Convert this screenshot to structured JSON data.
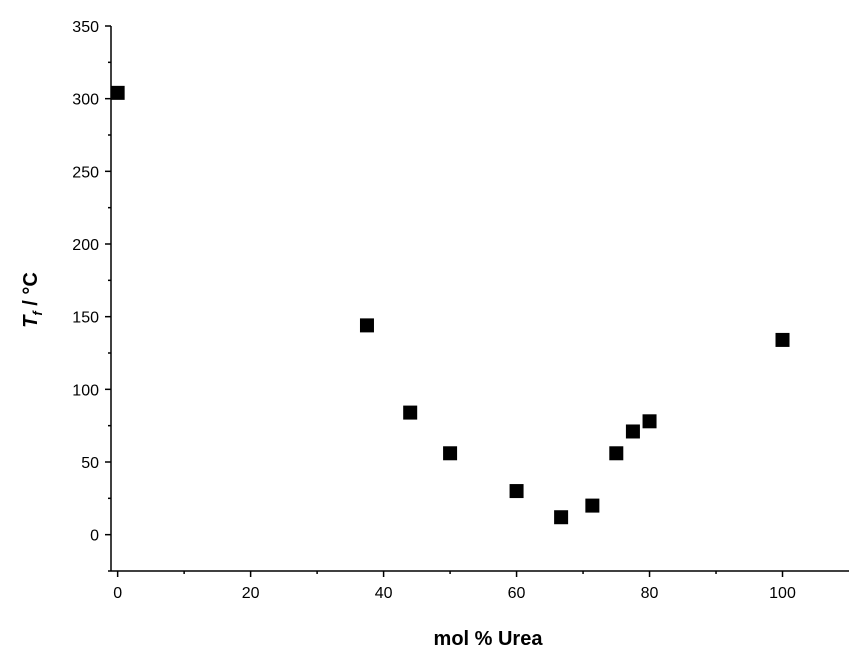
{
  "chart_data": {
    "type": "scatter",
    "title": "",
    "xlabel": "mol % Urea",
    "ylabel": {
      "symbol": "T",
      "subscript": "f",
      "unit": " / °C"
    },
    "xlim": [
      -1,
      110
    ],
    "ylim": [
      -25,
      350
    ],
    "x_ticks": [
      0,
      20,
      40,
      60,
      80,
      100
    ],
    "y_ticks": [
      0,
      50,
      100,
      150,
      200,
      250,
      300,
      350
    ],
    "x_tick_labels": [
      "0",
      "20",
      "40",
      "60",
      "80",
      "100"
    ],
    "y_tick_labels": [
      "0",
      "50",
      "100",
      "150",
      "200",
      "250",
      "300",
      "350"
    ],
    "grid": false,
    "marker": "square",
    "marker_color": "#000000",
    "series": [
      {
        "x": [
          0,
          37.5,
          44,
          50,
          60,
          66.7,
          71.4,
          75,
          77.5,
          80,
          100
        ],
        "y": [
          304,
          144,
          84,
          56,
          30,
          12,
          20,
          56,
          71,
          78,
          134
        ]
      }
    ]
  }
}
